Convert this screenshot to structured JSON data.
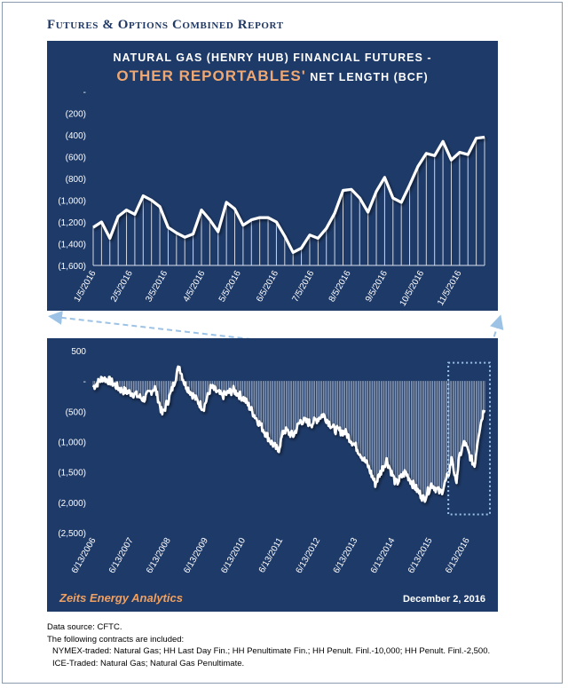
{
  "report_title": "Futures & Options Combined Report",
  "colors": {
    "panel": "#1e3a68",
    "line": "#ffffff",
    "highlight": "#f0a873",
    "accent_dashed": "#9cc3e6"
  },
  "chart_data": [
    {
      "type": "line",
      "title_line1": "NATURAL GAS (HENRY HUB) FINANCIAL FUTURES -",
      "title_highlight": "OTHER REPORTABLES'",
      "title_line2_rest": " NET LENGTH (BCF)",
      "y_ticks": [
        "-",
        "(200)",
        "(400)",
        "(600)",
        "(800)",
        "(1,000)",
        "(1,200)",
        "(1,400)",
        "(1,600)"
      ],
      "ylim": [
        -1600,
        0
      ],
      "x_ticks": [
        "1/5/2016",
        "2/5/2016",
        "3/5/2016",
        "4/5/2016",
        "5/5/2016",
        "6/5/2016",
        "7/5/2016",
        "8/5/2016",
        "9/5/2016",
        "10/5/2016",
        "11/5/2016"
      ],
      "x_tick_index": [
        0,
        4.4,
        8.6,
        13.1,
        17.4,
        21.9,
        26.2,
        30.6,
        35,
        39.4,
        43.9
      ],
      "values": [
        -1250,
        -1200,
        -1350,
        -1150,
        -1090,
        -1130,
        -960,
        -1000,
        -1060,
        -1250,
        -1300,
        -1340,
        -1310,
        -1090,
        -1180,
        -1290,
        -1020,
        -1080,
        -1230,
        -1180,
        -1160,
        -1160,
        -1200,
        -1330,
        -1480,
        -1440,
        -1320,
        -1350,
        -1260,
        -1120,
        -910,
        -900,
        -980,
        -1110,
        -920,
        -790,
        -980,
        -1020,
        -860,
        -690,
        -570,
        -590,
        -460,
        -630,
        -560,
        -580,
        -430,
        -420
      ]
    },
    {
      "type": "area",
      "y_ticks": [
        "500",
        "-",
        "(500)",
        "(1,000)",
        "(1,500)",
        "(2,000)",
        "(2,500)"
      ],
      "ylim": [
        -2500,
        500
      ],
      "x_ticks": [
        "6/13/2006",
        "6/13/2007",
        "6/13/2008",
        "6/13/2009",
        "6/13/2010",
        "6/13/2011",
        "6/13/2012",
        "6/13/2013",
        "6/13/2014",
        "6/13/2015",
        "6/13/2016"
      ],
      "x_year_start": 2006.45,
      "x_year_end": 2016.92,
      "anchors": [
        [
          2006.45,
          -100
        ],
        [
          2006.7,
          50
        ],
        [
          2006.9,
          0
        ],
        [
          2007.2,
          -150
        ],
        [
          2007.5,
          -200
        ],
        [
          2007.8,
          -300
        ],
        [
          2008.1,
          -100
        ],
        [
          2008.3,
          -550
        ],
        [
          2008.5,
          -250
        ],
        [
          2008.75,
          250
        ],
        [
          2008.9,
          -50
        ],
        [
          2009.2,
          -300
        ],
        [
          2009.4,
          -450
        ],
        [
          2009.6,
          -100
        ],
        [
          2009.9,
          -250
        ],
        [
          2010.2,
          -150
        ],
        [
          2010.5,
          -300
        ],
        [
          2010.8,
          -600
        ],
        [
          2011.0,
          -800
        ],
        [
          2011.2,
          -1000
        ],
        [
          2011.4,
          -1150
        ],
        [
          2011.55,
          -800
        ],
        [
          2011.8,
          -900
        ],
        [
          2012.0,
          -650
        ],
        [
          2012.3,
          -700
        ],
        [
          2012.6,
          -550
        ],
        [
          2012.9,
          -800
        ],
        [
          2013.2,
          -850
        ],
        [
          2013.5,
          -1100
        ],
        [
          2013.8,
          -1400
        ],
        [
          2014.0,
          -1700
        ],
        [
          2014.1,
          -1550
        ],
        [
          2014.3,
          -1300
        ],
        [
          2014.55,
          -1700
        ],
        [
          2014.8,
          -1500
        ],
        [
          2015.0,
          -1700
        ],
        [
          2015.3,
          -1950
        ],
        [
          2015.5,
          -1700
        ],
        [
          2015.75,
          -1850
        ],
        [
          2015.95,
          -1550
        ],
        [
          2016.05,
          -1250
        ],
        [
          2016.15,
          -1700
        ],
        [
          2016.25,
          -1250
        ],
        [
          2016.38,
          -1000
        ],
        [
          2016.5,
          -1200
        ],
        [
          2016.65,
          -1400
        ],
        [
          2016.75,
          -900
        ],
        [
          2016.85,
          -600
        ],
        [
          2016.92,
          -420
        ]
      ]
    }
  ],
  "branding": "Zeits Energy Analytics",
  "report_date": "December 2, 2016",
  "notes": [
    "Data source: CFTC.",
    "The following contracts are included:",
    "NYMEX-traded: Natural Gas; HH Last Day Fin.; HH Penultimate Fin.; HH Penult. Finl.-10,000; HH Penult. Finl.-2,500.",
    "ICE-Traded: Natural Gas; Natural Gas Penultimate."
  ]
}
